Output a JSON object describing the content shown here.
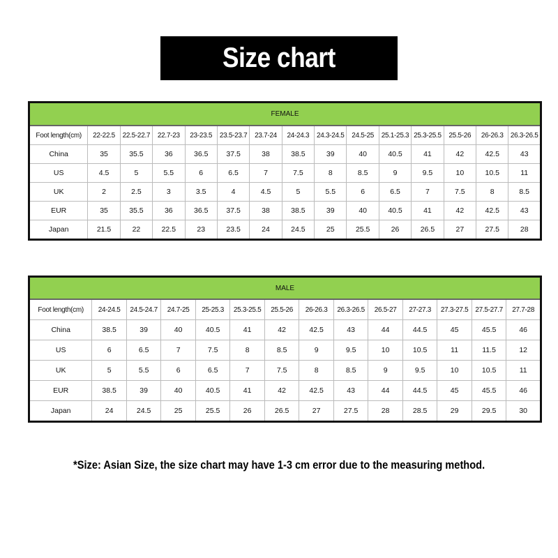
{
  "title": "Size chart",
  "colors": {
    "header_green": "#92d050",
    "title_bg": "#000000"
  },
  "tables": [
    {
      "id": "female",
      "heading": "FEMALE",
      "range_label": "Foot length(cm)",
      "ranges": [
        "22-22.5",
        "22.5-22.7",
        "22.7-23",
        "23-23.5",
        "23.5-23.7",
        "23.7-24",
        "24-24.3",
        "24.3-24.5",
        "24.5-25",
        "25.1-25.3",
        "25.3-25.5",
        "25.5-26",
        "26-26.3",
        "26.3-26.5"
      ],
      "rows": [
        {
          "label": "China",
          "values": [
            "35",
            "35.5",
            "36",
            "36.5",
            "37.5",
            "38",
            "38.5",
            "39",
            "40",
            "40.5",
            "41",
            "42",
            "42.5",
            "43"
          ]
        },
        {
          "label": "US",
          "values": [
            "4.5",
            "5",
            "5.5",
            "6",
            "6.5",
            "7",
            "7.5",
            "8",
            "8.5",
            "9",
            "9.5",
            "10",
            "10.5",
            "11"
          ]
        },
        {
          "label": "UK",
          "values": [
            "2",
            "2.5",
            "3",
            "3.5",
            "4",
            "4.5",
            "5",
            "5.5",
            "6",
            "6.5",
            "7",
            "7.5",
            "8",
            "8.5"
          ]
        },
        {
          "label": "EUR",
          "values": [
            "35",
            "35.5",
            "36",
            "36.5",
            "37.5",
            "38",
            "38.5",
            "39",
            "40",
            "40.5",
            "41",
            "42",
            "42.5",
            "43"
          ]
        },
        {
          "label": "Japan",
          "values": [
            "21.5",
            "22",
            "22.5",
            "23",
            "23.5",
            "24",
            "24.5",
            "25",
            "25.5",
            "26",
            "26.5",
            "27",
            "27.5",
            "28"
          ]
        }
      ]
    },
    {
      "id": "male",
      "heading": "MALE",
      "range_label": "Foot length(cm)",
      "ranges": [
        "24-24.5",
        "24.5-24.7",
        "24.7-25",
        "25-25.3",
        "25.3-25.5",
        "25.5-26",
        "26-26.3",
        "26.3-26.5",
        "26.5-27",
        "27-27.3",
        "27.3-27.5",
        "27.5-27.7",
        "27.7-28"
      ],
      "rows": [
        {
          "label": "China",
          "values": [
            "38.5",
            "39",
            "40",
            "40.5",
            "41",
            "42",
            "42.5",
            "43",
            "44",
            "44.5",
            "45",
            "45.5",
            "46"
          ]
        },
        {
          "label": "US",
          "values": [
            "6",
            "6.5",
            "7",
            "7.5",
            "8",
            "8.5",
            "9",
            "9.5",
            "10",
            "10.5",
            "11",
            "11.5",
            "12"
          ]
        },
        {
          "label": "UK",
          "values": [
            "5",
            "5.5",
            "6",
            "6.5",
            "7",
            "7.5",
            "8",
            "8.5",
            "9",
            "9.5",
            "10",
            "10.5",
            "11"
          ]
        },
        {
          "label": "EUR",
          "values": [
            "38.5",
            "39",
            "40",
            "40.5",
            "41",
            "42",
            "42.5",
            "43",
            "44",
            "44.5",
            "45",
            "45.5",
            "46"
          ]
        },
        {
          "label": "Japan",
          "values": [
            "24",
            "24.5",
            "25",
            "25.5",
            "26",
            "26.5",
            "27",
            "27.5",
            "28",
            "28.5",
            "29",
            "29.5",
            "30"
          ]
        }
      ]
    }
  ],
  "note": "*Size: Asian Size, the size chart may have 1-3 cm error due to the measuring method."
}
